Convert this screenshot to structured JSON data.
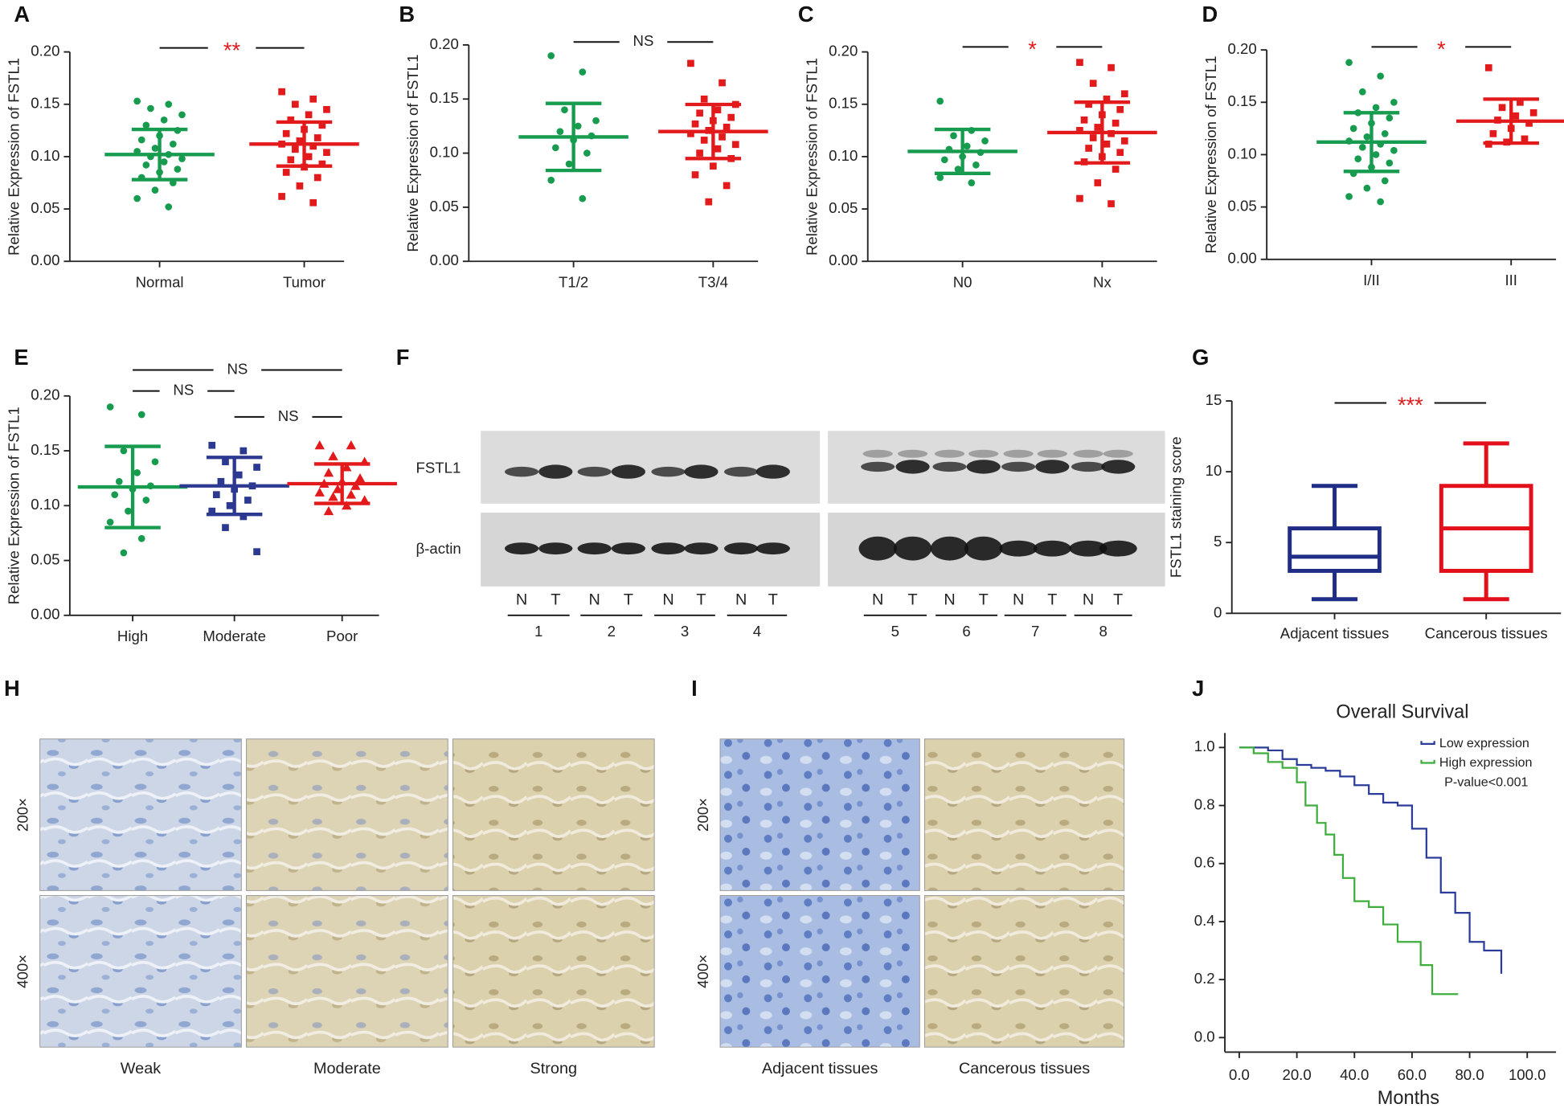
{
  "chart_data": [
    {
      "type": "dotplot",
      "panel": "A",
      "ylabel": "Relative Expression of FSTL1",
      "ylim": [
        0,
        0.2
      ],
      "yticks": [
        {
          "value": 0,
          "label": "0.00"
        },
        {
          "value": 0.05,
          "label": "0.05"
        },
        {
          "value": 0.1,
          "label": "0.10"
        },
        {
          "value": 0.15,
          "label": "0.15"
        },
        {
          "value": 0.2,
          "label": "0.20"
        }
      ],
      "groups": [
        {
          "category": "Normal",
          "color": "#169b4f",
          "marker": "circle",
          "mean": 0.102,
          "sd": 0.024,
          "points": [
            0.153,
            0.15,
            0.146,
            0.14,
            0.135,
            0.13,
            0.125,
            0.12,
            0.116,
            0.112,
            0.108,
            0.105,
            0.102,
            0.1,
            0.098,
            0.095,
            0.092,
            0.088,
            0.085,
            0.08,
            0.075,
            0.068,
            0.06,
            0.052
          ]
        },
        {
          "category": "Tumor",
          "color": "#e31a1c",
          "marker": "square",
          "mean": 0.112,
          "sd": 0.021,
          "points": [
            0.162,
            0.155,
            0.15,
            0.145,
            0.14,
            0.135,
            0.13,
            0.126,
            0.122,
            0.118,
            0.115,
            0.112,
            0.11,
            0.107,
            0.104,
            0.1,
            0.097,
            0.093,
            0.09,
            0.085,
            0.08,
            0.072,
            0.062,
            0.056
          ]
        }
      ],
      "comparisons": [
        {
          "groups": [
            0,
            1
          ],
          "label": "**",
          "color": "#e31a1c"
        }
      ]
    },
    {
      "type": "dotplot",
      "panel": "B",
      "ylabel": "Relative Expression of FSTL1",
      "ylim": [
        0,
        0.2
      ],
      "yticks": [
        {
          "value": 0,
          "label": "0.00"
        },
        {
          "value": 0.05,
          "label": "0.05"
        },
        {
          "value": 0.1,
          "label": "0.10"
        },
        {
          "value": 0.15,
          "label": "0.15"
        },
        {
          "value": 0.2,
          "label": "0.20"
        }
      ],
      "groups": [
        {
          "category": "T1/2",
          "color": "#169b4f",
          "marker": "circle",
          "mean": 0.115,
          "sd": 0.031,
          "points": [
            0.19,
            0.175,
            0.14,
            0.13,
            0.125,
            0.12,
            0.116,
            0.112,
            0.105,
            0.1,
            0.09,
            0.075,
            0.058
          ]
        },
        {
          "category": "T3/4",
          "color": "#e31a1c",
          "marker": "square",
          "mean": 0.12,
          "sd": 0.025,
          "points": [
            0.183,
            0.165,
            0.15,
            0.145,
            0.14,
            0.137,
            0.133,
            0.13,
            0.127,
            0.124,
            0.121,
            0.118,
            0.115,
            0.112,
            0.108,
            0.104,
            0.1,
            0.095,
            0.088,
            0.08,
            0.07,
            0.055
          ]
        }
      ],
      "comparisons": [
        {
          "groups": [
            0,
            1
          ],
          "label": "NS",
          "color": "#222222"
        }
      ]
    },
    {
      "type": "dotplot",
      "panel": "C",
      "ylabel": "Relative Expression of FSTL1",
      "ylim": [
        0,
        0.2
      ],
      "yticks": [
        {
          "value": 0,
          "label": "0.00"
        },
        {
          "value": 0.05,
          "label": "0.05"
        },
        {
          "value": 0.1,
          "label": "0.10"
        },
        {
          "value": 0.15,
          "label": "0.15"
        },
        {
          "value": 0.2,
          "label": "0.20"
        }
      ],
      "groups": [
        {
          "category": "N0",
          "color": "#169b4f",
          "marker": "circle",
          "mean": 0.105,
          "sd": 0.021,
          "points": [
            0.153,
            0.125,
            0.12,
            0.115,
            0.11,
            0.107,
            0.104,
            0.1,
            0.097,
            0.092,
            0.088,
            0.08,
            0.075
          ]
        },
        {
          "category": "Nx",
          "color": "#e31a1c",
          "marker": "square",
          "mean": 0.123,
          "sd": 0.029,
          "points": [
            0.19,
            0.185,
            0.17,
            0.16,
            0.155,
            0.15,
            0.145,
            0.14,
            0.135,
            0.132,
            0.128,
            0.125,
            0.122,
            0.118,
            0.115,
            0.112,
            0.108,
            0.104,
            0.1,
            0.095,
            0.088,
            0.075,
            0.06,
            0.055
          ]
        }
      ],
      "comparisons": [
        {
          "groups": [
            0,
            1
          ],
          "label": "*",
          "color": "#e31a1c"
        }
      ]
    },
    {
      "type": "dotplot",
      "panel": "D",
      "ylabel": "Relative Expression of FSTL1",
      "ylim": [
        0,
        0.2
      ],
      "yticks": [
        {
          "value": 0,
          "label": "0.00"
        },
        {
          "value": 0.05,
          "label": "0.05"
        },
        {
          "value": 0.1,
          "label": "0.10"
        },
        {
          "value": 0.15,
          "label": "0.15"
        },
        {
          "value": 0.2,
          "label": "0.20"
        }
      ],
      "groups": [
        {
          "category": "I/II",
          "color": "#169b4f",
          "marker": "circle",
          "mean": 0.112,
          "sd": 0.028,
          "points": [
            0.188,
            0.175,
            0.16,
            0.15,
            0.145,
            0.14,
            0.135,
            0.13,
            0.125,
            0.12,
            0.117,
            0.113,
            0.11,
            0.107,
            0.104,
            0.1,
            0.096,
            0.092,
            0.088,
            0.082,
            0.075,
            0.068,
            0.06,
            0.055
          ]
        },
        {
          "category": "III",
          "color": "#e31a1c",
          "marker": "square",
          "mean": 0.132,
          "sd": 0.021,
          "points": [
            0.183,
            0.15,
            0.145,
            0.14,
            0.137,
            0.133,
            0.13,
            0.125,
            0.12,
            0.115,
            0.112,
            0.11
          ]
        }
      ],
      "comparisons": [
        {
          "groups": [
            0,
            1
          ],
          "label": "*",
          "color": "#e31a1c"
        }
      ]
    },
    {
      "type": "dotplot",
      "panel": "E",
      "ylabel": "Relative Expression of FSTL1",
      "ylim": [
        0,
        0.2
      ],
      "yticks": [
        {
          "value": 0,
          "label": "0.00"
        },
        {
          "value": 0.05,
          "label": "0.05"
        },
        {
          "value": 0.1,
          "label": "0.10"
        },
        {
          "value": 0.15,
          "label": "0.15"
        },
        {
          "value": 0.2,
          "label": "0.20"
        }
      ],
      "groups": [
        {
          "category": "High",
          "color": "#169b4f",
          "marker": "circle",
          "mean": 0.117,
          "sd": 0.037,
          "points": [
            0.19,
            0.183,
            0.15,
            0.14,
            0.13,
            0.122,
            0.118,
            0.115,
            0.11,
            0.105,
            0.095,
            0.085,
            0.07,
            0.057
          ]
        },
        {
          "category": "Moderate",
          "color": "#2b3990",
          "marker": "square",
          "mean": 0.118,
          "sd": 0.026,
          "points": [
            0.155,
            0.15,
            0.14,
            0.135,
            0.128,
            0.122,
            0.118,
            0.115,
            0.11,
            0.105,
            0.1,
            0.095,
            0.09,
            0.08,
            0.058
          ]
        },
        {
          "category": "Poor",
          "color": "#e31a1c",
          "marker": "triangle",
          "mean": 0.12,
          "sd": 0.018,
          "points": [
            0.155,
            0.155,
            0.145,
            0.14,
            0.135,
            0.13,
            0.125,
            0.122,
            0.12,
            0.118,
            0.115,
            0.112,
            0.11,
            0.108,
            0.105,
            0.1,
            0.095
          ]
        }
      ],
      "comparisons": [
        {
          "groups": [
            0,
            2
          ],
          "label": "NS",
          "color": "#222222"
        },
        {
          "groups": [
            0,
            1
          ],
          "label": "NS",
          "color": "#222222"
        },
        {
          "groups": [
            1,
            2
          ],
          "label": "NS",
          "color": "#222222"
        }
      ]
    },
    {
      "type": "box",
      "panel": "G",
      "ylabel": "FSTL1 staining score",
      "ylim": [
        0,
        15
      ],
      "yticks": [
        0,
        5,
        10,
        15
      ],
      "groups": [
        {
          "category": "Adjacent tissues",
          "color": "#1f2d86",
          "min": 1,
          "q1": 3,
          "median": 4,
          "q3": 6,
          "max": 9
        },
        {
          "category": "Cancerous tissues",
          "color": "#e3101b",
          "min": 1,
          "q1": 3,
          "median": 6,
          "q3": 9,
          "max": 12
        }
      ],
      "comparisons": [
        {
          "groups": [
            0,
            1
          ],
          "label": "***",
          "color": "#e31a1c"
        }
      ]
    },
    {
      "type": "line",
      "panel": "J",
      "title": "Overall Survival",
      "xlabel": "Months",
      "step": true,
      "xlim": [
        -5,
        110
      ],
      "ylim": [
        -0.05,
        1.05
      ],
      "xticks": [
        {
          "value": 0,
          "label": "0.0"
        },
        {
          "value": 20,
          "label": "20.0"
        },
        {
          "value": 40,
          "label": "40.0"
        },
        {
          "value": 60,
          "label": "60.0"
        },
        {
          "value": 80,
          "label": "80.0"
        },
        {
          "value": 100,
          "label": "100.0"
        }
      ],
      "yticks": [
        {
          "value": 0,
          "label": "0.0"
        },
        {
          "value": 0.2,
          "label": "0.2"
        },
        {
          "value": 0.4,
          "label": "0.4"
        },
        {
          "value": 0.6,
          "label": "0.6"
        },
        {
          "value": 0.8,
          "label": "0.8"
        },
        {
          "value": 1,
          "label": "1.0"
        }
      ],
      "legend": "upper right",
      "annotation": "P-value<0.001",
      "series": [
        {
          "name": "Low expression",
          "color": "#2b3b99",
          "x": [
            0,
            10,
            15,
            20,
            25,
            30,
            35,
            40,
            45,
            50,
            55,
            60,
            65,
            70,
            75,
            80,
            85,
            90,
            91
          ],
          "y": [
            1,
            0.99,
            0.96,
            0.94,
            0.93,
            0.92,
            0.9,
            0.87,
            0.84,
            0.81,
            0.8,
            0.72,
            0.62,
            0.5,
            0.43,
            0.33,
            0.3,
            0.3,
            0.22
          ]
        },
        {
          "name": "High expression",
          "color": "#3dae3c",
          "x": [
            0,
            5,
            10,
            15,
            20,
            23,
            27,
            30,
            33,
            36,
            40,
            45,
            50,
            55,
            60,
            63,
            67,
            76
          ],
          "y": [
            1,
            0.98,
            0.95,
            0.93,
            0.88,
            0.8,
            0.74,
            0.7,
            0.63,
            0.55,
            0.47,
            0.45,
            0.39,
            0.33,
            0.33,
            0.25,
            0.15,
            0.15
          ]
        }
      ]
    }
  ],
  "blot": {
    "panel": "F",
    "rows": [
      "FSTL1",
      "β-actin"
    ],
    "lanes": [
      "N",
      "T",
      "N",
      "T",
      "N",
      "T",
      "N",
      "T",
      "N",
      "T",
      "N",
      "T",
      "N",
      "T",
      "N",
      "T"
    ],
    "samples": [
      "1",
      "2",
      "3",
      "4",
      "5",
      "6",
      "7",
      "8"
    ]
  },
  "histology": [
    {
      "panel": "H",
      "magnifications": [
        "200×",
        "400×"
      ],
      "columns": [
        "Weak",
        "Moderate",
        "Strong"
      ]
    },
    {
      "panel": "I",
      "magnifications": [
        "200×",
        "400×"
      ],
      "columns": [
        "Adjacent tissues",
        "Cancerous tissues"
      ]
    }
  ]
}
